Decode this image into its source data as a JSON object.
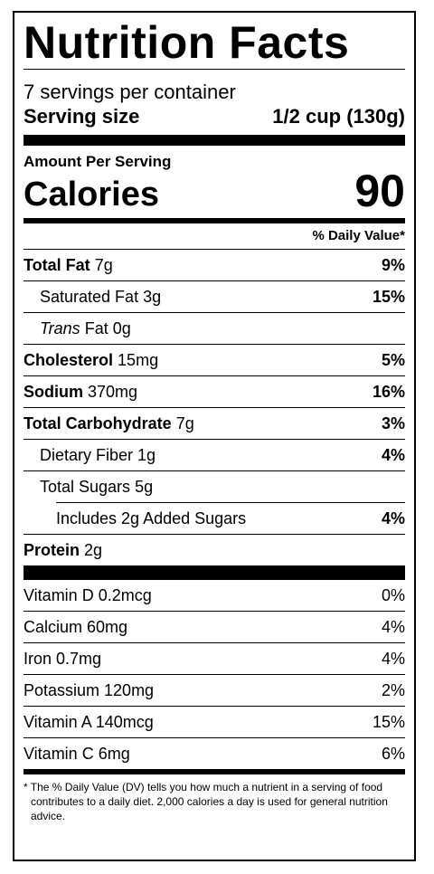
{
  "title": "Nutrition Facts",
  "servings_per_container": "7 servings per container",
  "serving_size_label": "Serving size",
  "serving_size_value": "1/2 cup (130g)",
  "amount_per_serving": "Amount Per Serving",
  "calories_label": "Calories",
  "calories_value": "90",
  "daily_value_header": "% Daily Value*",
  "nutrients": [
    {
      "name": "Total Fat",
      "amount": "7g",
      "dv": "9%"
    },
    {
      "name": "Saturated Fat",
      "amount": "3g",
      "dv": "15%"
    },
    {
      "name": "Trans",
      "name_rest": "Fat",
      "amount": "0g",
      "dv": ""
    },
    {
      "name": "Cholesterol",
      "amount": "15mg",
      "dv": "5%"
    },
    {
      "name": "Sodium",
      "amount": "370mg",
      "dv": "16%"
    },
    {
      "name": "Total Carbohydrate",
      "amount": "7g",
      "dv": "3%"
    },
    {
      "name": "Dietary Fiber",
      "amount": "1g",
      "dv": "4%"
    },
    {
      "name": "Total Sugars",
      "amount": "5g",
      "dv": ""
    },
    {
      "name": "Includes 2g Added Sugars",
      "amount": "",
      "dv": "4%"
    },
    {
      "name": "Protein",
      "amount": "2g",
      "dv": ""
    }
  ],
  "vitamins": [
    {
      "name": "Vitamin D 0.2mcg",
      "dv": "0%"
    },
    {
      "name": "Calcium 60mg",
      "dv": "4%"
    },
    {
      "name": "Iron 0.7mg",
      "dv": "4%"
    },
    {
      "name": "Potassium 120mg",
      "dv": "2%"
    },
    {
      "name": "Vitamin A 140mcg",
      "dv": "15%"
    },
    {
      "name": "Vitamin C 6mg",
      "dv": "6%"
    }
  ],
  "footnote": "* The % Daily Value (DV) tells you how much a nutrient in a serving of food contributes to a daily diet. 2,000 calories a day is used for general nutrition advice."
}
